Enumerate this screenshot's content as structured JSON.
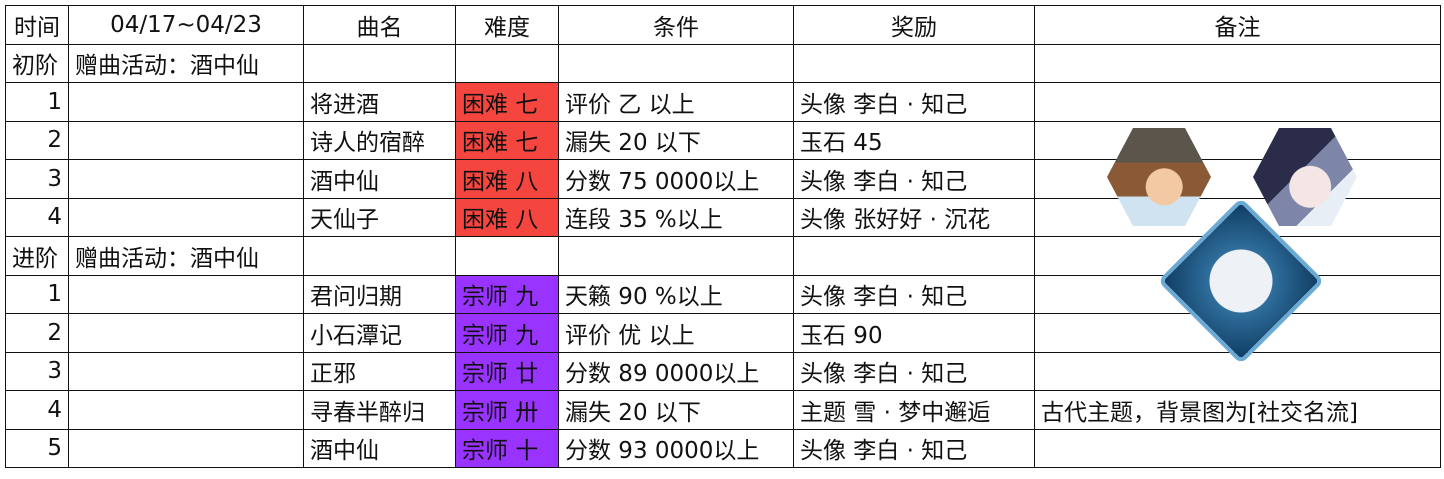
{
  "header": {
    "time": "时间",
    "date": "04/17~04/23",
    "song": "曲名",
    "difficulty": "难度",
    "condition": "条件",
    "reward": "奖励",
    "note": "备注"
  },
  "colors": {
    "hard": "#f4453f",
    "master": "#9933ff"
  },
  "sections": [
    {
      "label": "初阶",
      "event": "赠曲活动：酒中仙",
      "rows": [
        {
          "n": "1",
          "song": "将进酒",
          "diff": "困难 七",
          "cond": "评价 乙 以上",
          "reward": "头像 李白 · 知己"
        },
        {
          "n": "2",
          "song": "诗人的宿醉",
          "diff": "困难 七",
          "cond": "漏失 20 以下",
          "reward": "玉石 45"
        },
        {
          "n": "3",
          "song": "酒中仙",
          "diff": "困难 八",
          "cond": "分数 75 0000以上",
          "reward": "头像 李白 · 知己"
        },
        {
          "n": "4",
          "song": "天仙子",
          "diff": "困难 八",
          "cond": "连段 35 %以上",
          "reward": "头像 张好好 · 沉花"
        }
      ]
    },
    {
      "label": "进阶",
      "event": "赠曲活动：酒中仙",
      "rows": [
        {
          "n": "1",
          "song": "君问归期",
          "diff": "宗师 九",
          "cond": "天籁 90 %以上",
          "reward": "头像 李白 · 知己"
        },
        {
          "n": "2",
          "song": "小石潭记",
          "diff": "宗师 九",
          "cond": "评价 优 以上",
          "reward": "玉石 90"
        },
        {
          "n": "3",
          "song": "正邪",
          "diff": "宗师 廿",
          "cond": "分数 89 0000以上",
          "reward": "头像 李白 · 知己"
        },
        {
          "n": "4",
          "song": "寻春半醉归",
          "diff": "宗师 卅",
          "cond": "漏失 20 以下",
          "reward": "主题 雪 · 梦中邂逅",
          "note": "古代主题，背景图为[社交名流]"
        },
        {
          "n": "5",
          "song": "酒中仙",
          "diff": "宗师 十",
          "cond": "分数 93 0000以上",
          "reward": "头像 李白 · 知己"
        }
      ]
    }
  ],
  "images": [
    "li-bai-avatar",
    "zhang-haohao-avatar",
    "snow-dream-theme"
  ]
}
